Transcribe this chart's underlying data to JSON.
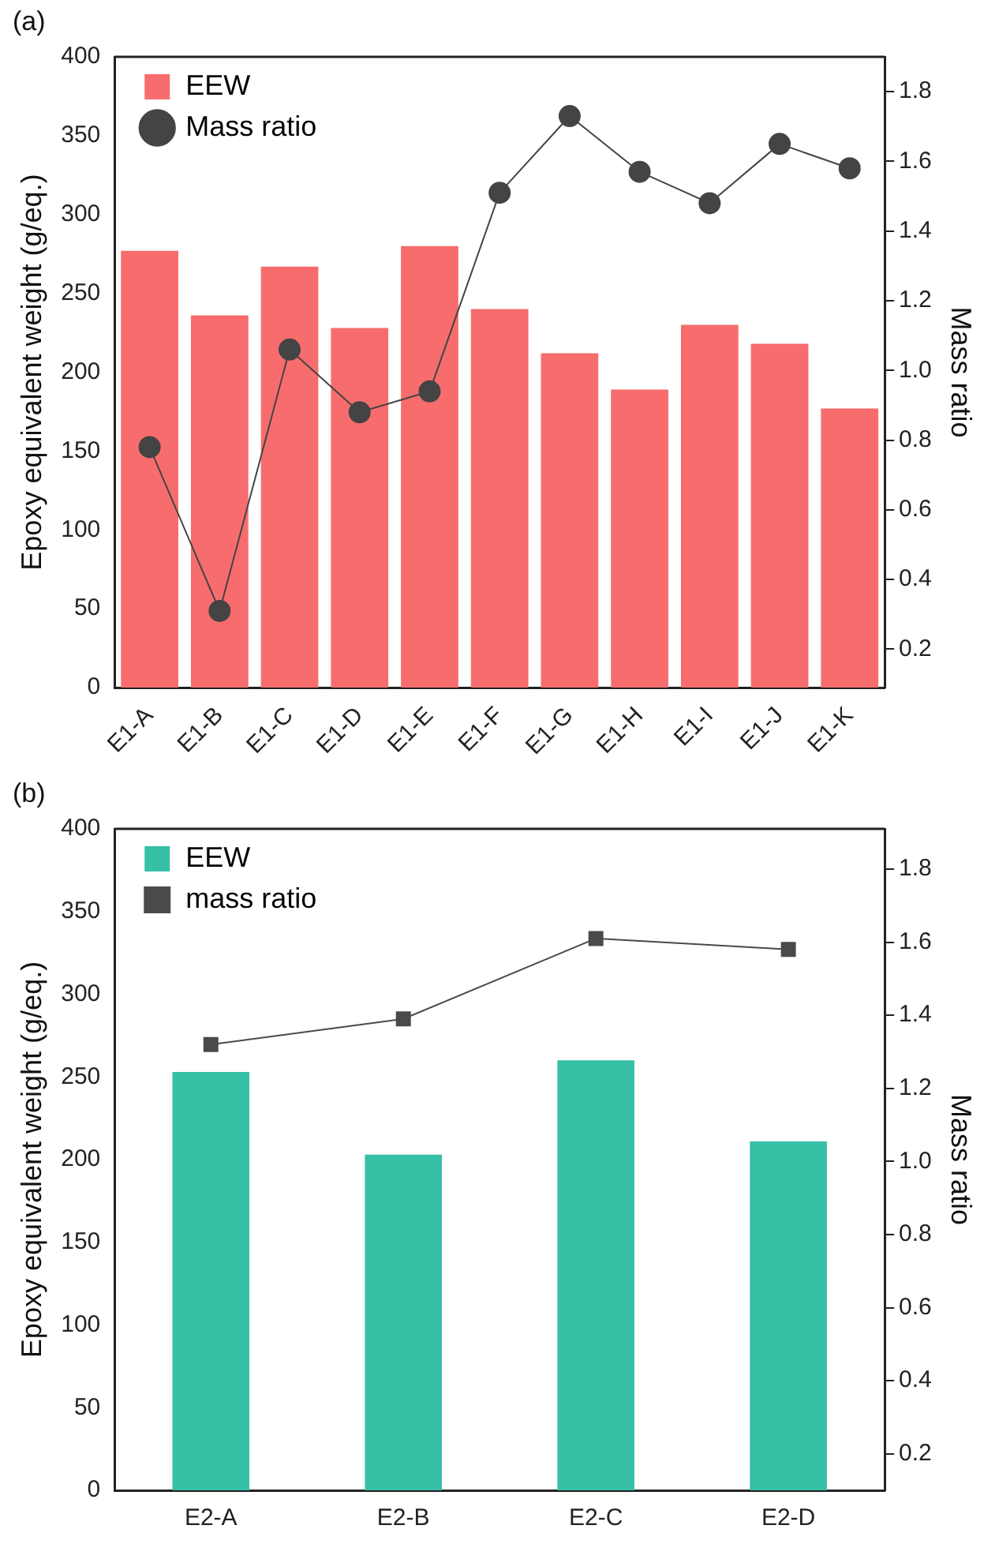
{
  "chart_data": [
    {
      "type": "bar",
      "title": "(a)",
      "ylabel": "Epoxy equivalent weight (g/eq.)",
      "y2label": "Mass ratio",
      "categories": [
        "E1-A",
        "E1-B",
        "E1-C",
        "E1-D",
        "E1-E",
        "E1-F",
        "E1-G",
        "E1-H",
        "E1-I",
        "E1-J",
        "E1-K"
      ],
      "series": [
        {
          "name": "EEW",
          "color": "#f76d6d",
          "values": [
            277,
            236,
            267,
            228,
            280,
            240,
            212,
            189,
            230,
            218,
            177
          ]
        },
        {
          "name": "Mass ratio",
          "type": "line",
          "axis": "y2",
          "color": "#444444",
          "marker": "circle",
          "values": [
            0.78,
            0.31,
            1.06,
            0.88,
            0.94,
            1.51,
            1.73,
            1.57,
            1.48,
            1.65,
            1.58
          ]
        }
      ],
      "ylim": [
        0,
        400
      ],
      "yticks": [
        0,
        50,
        100,
        150,
        200,
        250,
        300,
        350,
        400
      ],
      "y2lim": [
        0.09,
        1.9
      ],
      "y2ticks": [
        0.2,
        0.4,
        0.6,
        0.8,
        {
          "value": 1,
          "label": "1.0"
        },
        1.2,
        1.4,
        1.6,
        1.8
      ],
      "grid": false,
      "legend": "top left"
    },
    {
      "type": "bar",
      "title": "(b)",
      "ylabel": "Epoxy equivalent weight (g/eq.)",
      "y2label": "Mass ratio",
      "categories": [
        "E2-A",
        "E2-B",
        "E2-C",
        "E2-D"
      ],
      "series": [
        {
          "name": "EEW",
          "color": "#36c0a6",
          "values": [
            253,
            203,
            260,
            211
          ]
        },
        {
          "name": "mass ratio",
          "type": "line",
          "axis": "y2",
          "color": "#4a4a4a",
          "marker": "square",
          "values": [
            1.32,
            1.39,
            1.61,
            1.58
          ]
        }
      ],
      "ylim": [
        0,
        400
      ],
      "yticks": [
        0,
        50,
        100,
        150,
        200,
        250,
        300,
        350,
        400
      ],
      "y2lim": [
        0.1,
        1.91
      ],
      "y2ticks": [
        0.2,
        0.4,
        0.6,
        0.8,
        {
          "value": 1,
          "label": "1.0"
        },
        1.2,
        1.4,
        1.6,
        1.8
      ],
      "grid": false,
      "legend": "top left"
    }
  ]
}
